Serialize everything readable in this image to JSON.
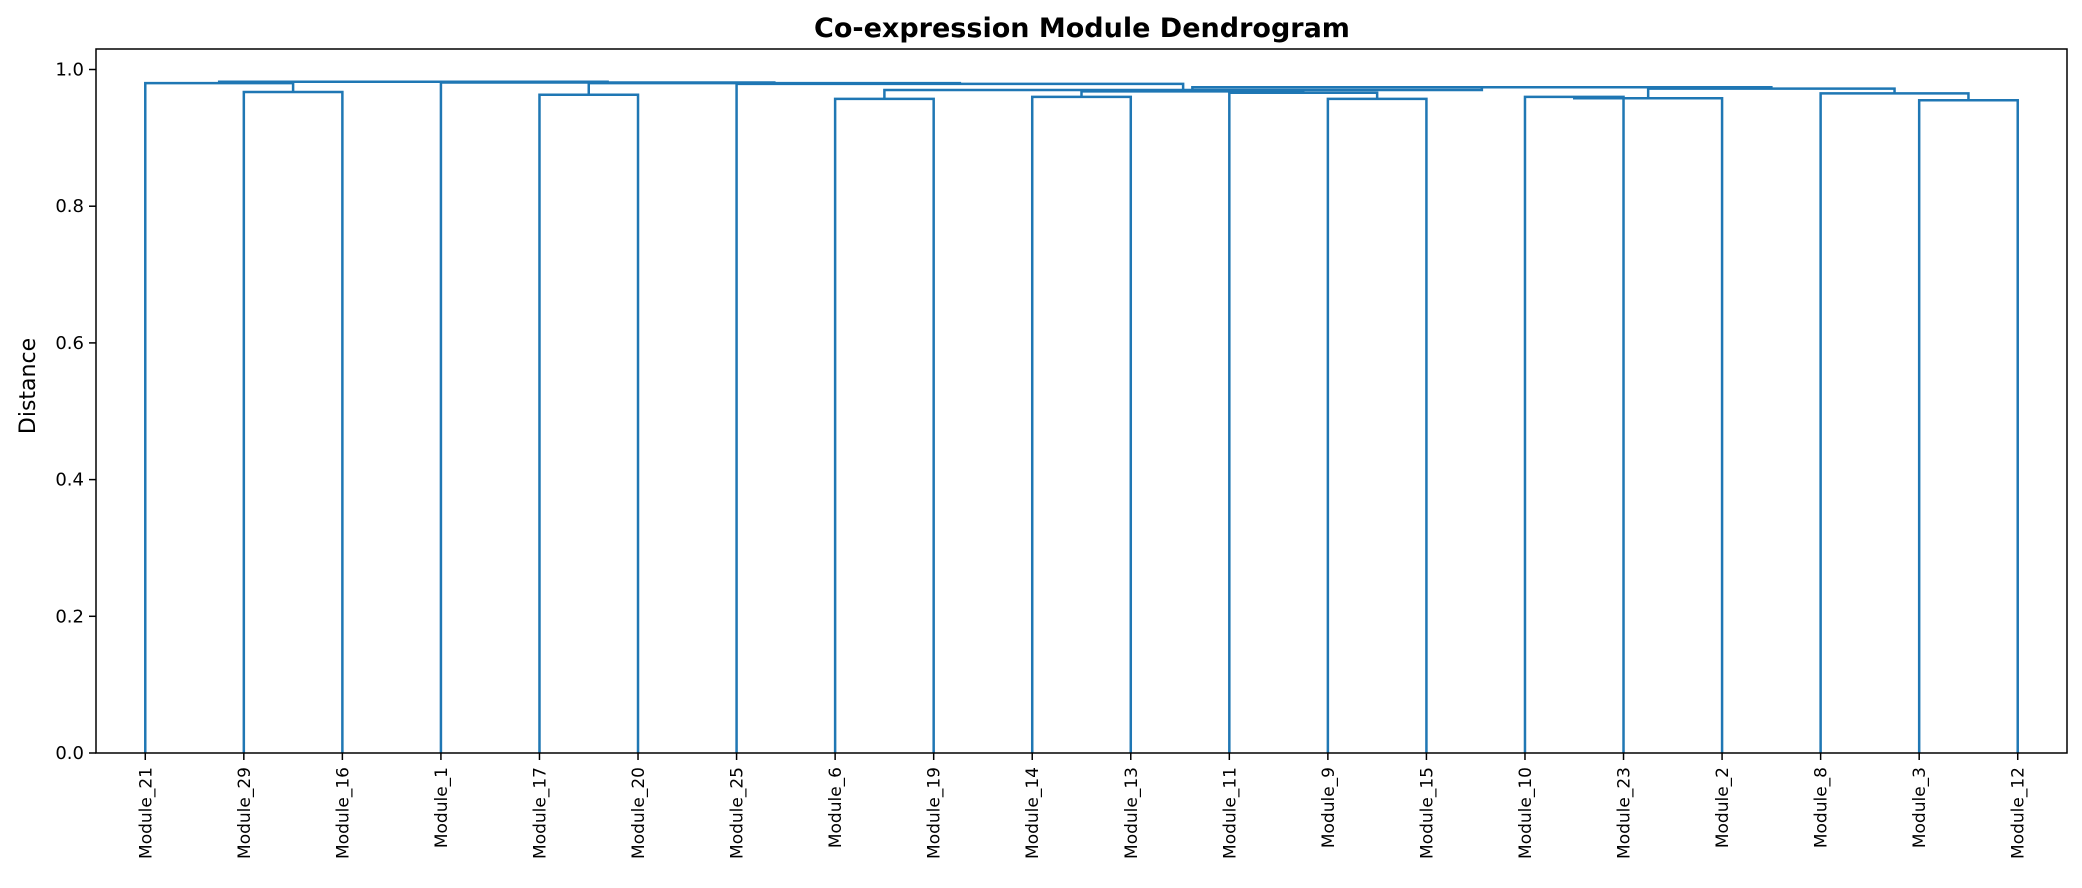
{
  "chart_data": {
    "type": "dendrogram",
    "title": "Co-expression Module Dendrogram",
    "xlabel": "",
    "ylabel": "Distance",
    "ylim": [
      0,
      1.03
    ],
    "yticks": [
      0.0,
      0.2,
      0.4,
      0.6,
      0.8,
      1.0
    ],
    "ytick_labels": [
      "0.0",
      "0.2",
      "0.4",
      "0.6",
      "0.8",
      "1.0"
    ],
    "leaves": [
      "Module_21",
      "Module_29",
      "Module_16",
      "Module_1",
      "Module_17",
      "Module_20",
      "Module_25",
      "Module_6",
      "Module_19",
      "Module_14",
      "Module_13",
      "Module_11",
      "Module_9",
      "Module_15",
      "Module_10",
      "Module_23",
      "Module_2",
      "Module_8",
      "Module_3",
      "Module_12"
    ],
    "line_color": "#1f77b4",
    "grid": false,
    "merges": [
      {
        "a": "Module_29",
        "b": "Module_16",
        "height": 0.967
      },
      {
        "a": "Module_21",
        "b": "(Module_29,Module_16)",
        "height": 0.98
      },
      {
        "a": "Module_17",
        "b": "Module_20",
        "height": 0.963
      },
      {
        "a": "Module_6",
        "b": "Module_19",
        "height": 0.957
      },
      {
        "a": "Module_14",
        "b": "Module_13",
        "height": 0.96
      },
      {
        "a": "Module_9",
        "b": "Module_15",
        "height": 0.957
      },
      {
        "a": "Module_11",
        "b": "(Module_9,Module_15)",
        "height": 0.966
      },
      {
        "a": "(Module_14,Module_13)",
        "b": "(Module_11,Module_9,Module_15)",
        "height": 0.968
      },
      {
        "a": "Module_10",
        "b": "Module_23",
        "height": 0.96
      },
      {
        "a": "(Module_10,Module_23)",
        "b": "Module_2",
        "height": 0.958
      },
      {
        "a": "Module_3",
        "b": "Module_12",
        "height": 0.955
      },
      {
        "a": "Module_8",
        "b": "(Module_3,Module_12)",
        "height": 0.965
      },
      {
        "a": "(Module_10,Module_23,Module_2)",
        "b": "(Module_8,Module_3,Module_12)",
        "height": 0.972
      },
      {
        "a": "(Module_14,...,Module_15)",
        "b": "(Module_10,...,Module_12)",
        "height": 0.974
      },
      {
        "a": "(Module_6,Module_19)",
        "b": "(Module_14,...,Module_12)",
        "height": 0.97
      },
      {
        "a": "Module_25",
        "b": "(Module_6,...,Module_12)",
        "height": 0.979
      },
      {
        "a": "(Module_17,Module_20)",
        "b": "(Module_25,...,Module_12)",
        "height": 0.98
      },
      {
        "a": "Module_1",
        "b": "(Module_17,...,Module_12)",
        "height": 0.981
      },
      {
        "a": "(Module_21,Module_29,Module_16)",
        "b": "(Module_1,...,Module_12)",
        "height": 0.982
      }
    ]
  }
}
